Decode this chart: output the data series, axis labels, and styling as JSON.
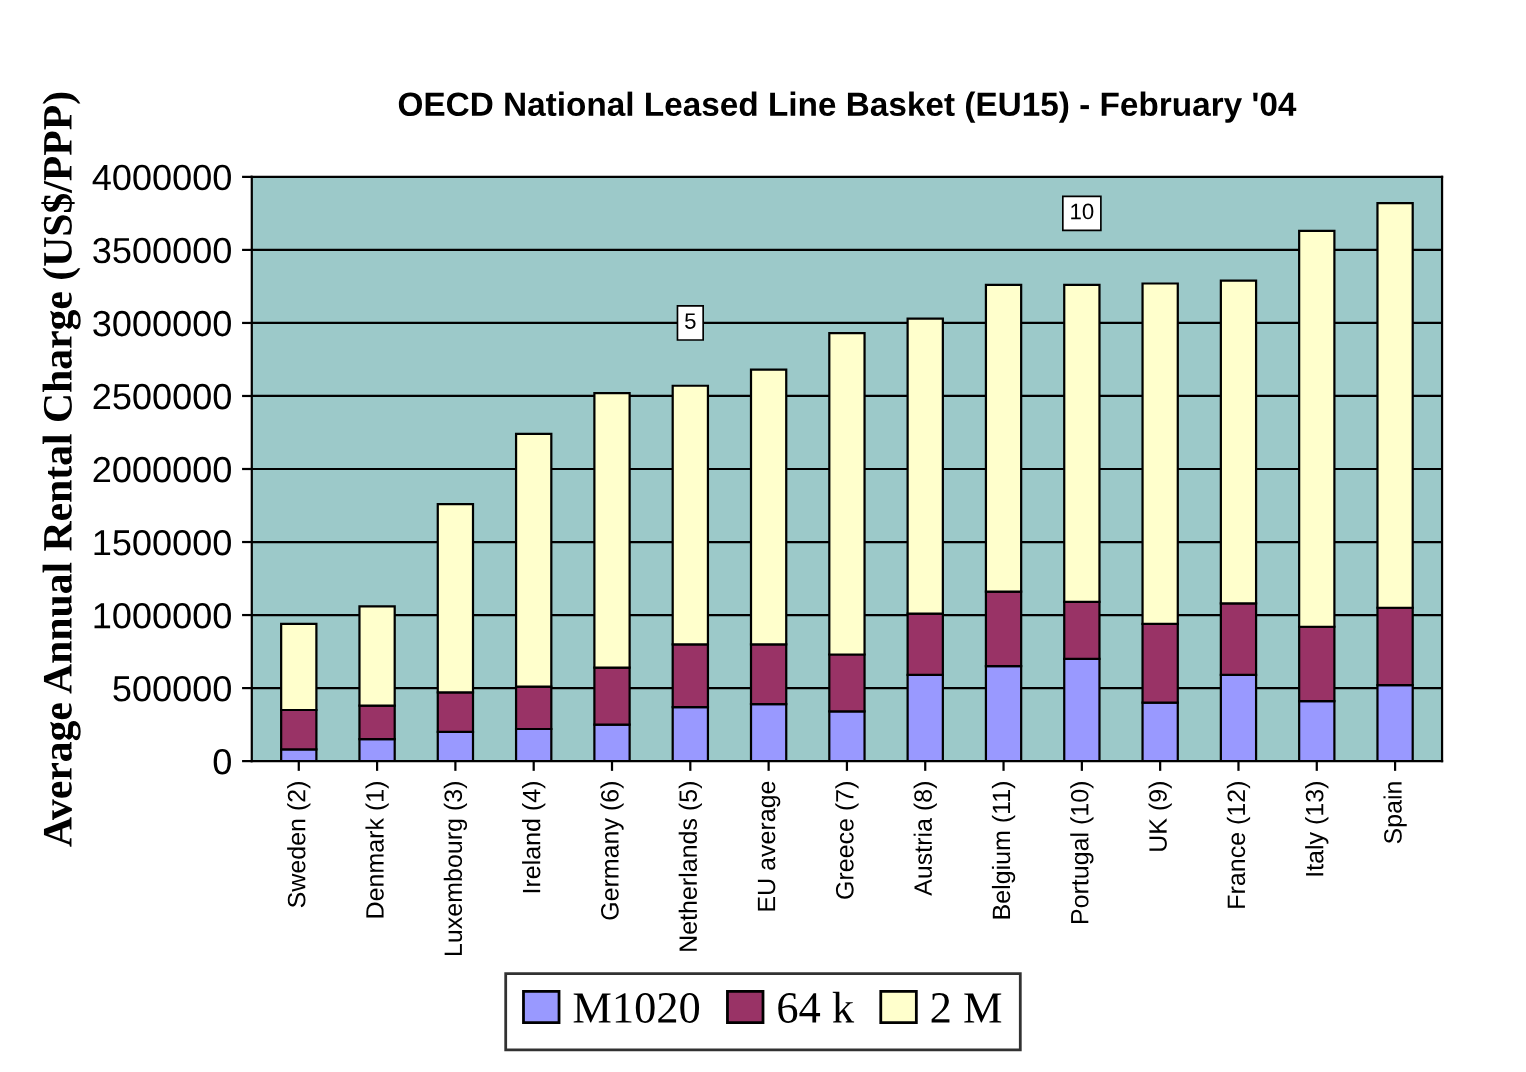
{
  "chart_data": {
    "type": "bar",
    "stacked": true,
    "title": "OECD National Leased Line Basket (EU15) - February '04",
    "ylabel": "Average Annual Rental Charge (US$/PPP)",
    "categories": [
      "Sweden (2)",
      "Denmark (1)",
      "Luxembourg (3)",
      "Ireland (4)",
      "Germany (6)",
      "Netherlands (5)",
      "EU average",
      "Greece (7)",
      "Austria (8)",
      "Belgium (11)",
      "Portugal (10)",
      "UK (9)",
      "France (12)",
      "Italy (13)",
      "Spain"
    ],
    "series": [
      {
        "name": "M1020",
        "color": "#9999ff",
        "values": [
          80000,
          150000,
          200000,
          220000,
          250000,
          370000,
          390000,
          340000,
          590000,
          650000,
          700000,
          400000,
          590000,
          410000,
          520000
        ]
      },
      {
        "name": "64 k",
        "color": "#993366",
        "values": [
          270000,
          230000,
          270000,
          290000,
          390000,
          430000,
          410000,
          390000,
          420000,
          510000,
          390000,
          540000,
          490000,
          510000,
          530000
        ]
      },
      {
        "name": "2 M",
        "color": "#ffffcc",
        "values": [
          590000,
          680000,
          1290000,
          1730000,
          1880000,
          1770000,
          1880000,
          2200000,
          2020000,
          2100000,
          2170000,
          2330000,
          2210000,
          2710000,
          2770000
        ]
      }
    ],
    "ylim": [
      0,
      4000000
    ],
    "yticks": [
      0,
      500000,
      1000000,
      1500000,
      2000000,
      2500000,
      3000000,
      3500000,
      4000000
    ],
    "grid": "y",
    "legend": "bottom",
    "annotations": [
      {
        "text": "5",
        "x": "Netherlands (5)",
        "y": 3000000
      },
      {
        "text": "10",
        "x": "Portugal (10)",
        "y": 3750000
      }
    ]
  }
}
